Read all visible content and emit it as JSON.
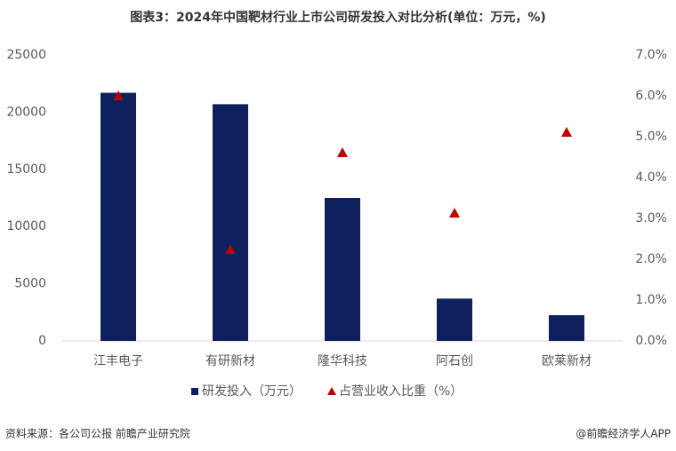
{
  "chart_data": {
    "type": "bar",
    "title": "图表3：2024年中国靶材行业上市公司研发投入对比分析(单位：万元，%)",
    "categories": [
      "江丰电子",
      "有研新材",
      "隆华科技",
      "阿石创",
      "欧莱新材"
    ],
    "series": [
      {
        "name": "研发投入（万元）",
        "type": "bar",
        "color": "#0d1f5c",
        "values": [
          21700,
          20700,
          12500,
          3700,
          2250
        ]
      },
      {
        "name": "占营业收入比重（%）",
        "type": "scatter",
        "marker": "triangle",
        "axis": "y2",
        "color": "#c00000",
        "values": [
          6.0,
          2.24,
          4.61,
          3.13,
          5.11
        ]
      }
    ],
    "ylim": [
      0,
      25000
    ],
    "yticks": [
      0,
      5000,
      10000,
      15000,
      20000,
      25000
    ],
    "y2lim": [
      0,
      7
    ],
    "y2ticks": [
      {
        "value": 0,
        "label": "0.0%"
      },
      {
        "value": 1,
        "label": "1.0%"
      },
      {
        "value": 2,
        "label": "2.0%"
      },
      {
        "value": 3,
        "label": "3.0%"
      },
      {
        "value": 4,
        "label": "4.0%"
      },
      {
        "value": 5,
        "label": "5.0%"
      },
      {
        "value": 6,
        "label": "6.0%"
      },
      {
        "value": 7,
        "label": "7.0%"
      }
    ],
    "grid": false,
    "legend": "bottom",
    "source": "资料来源：各公司公报 前瞻产业研究院",
    "credit": "@前瞻经济学人APP"
  }
}
